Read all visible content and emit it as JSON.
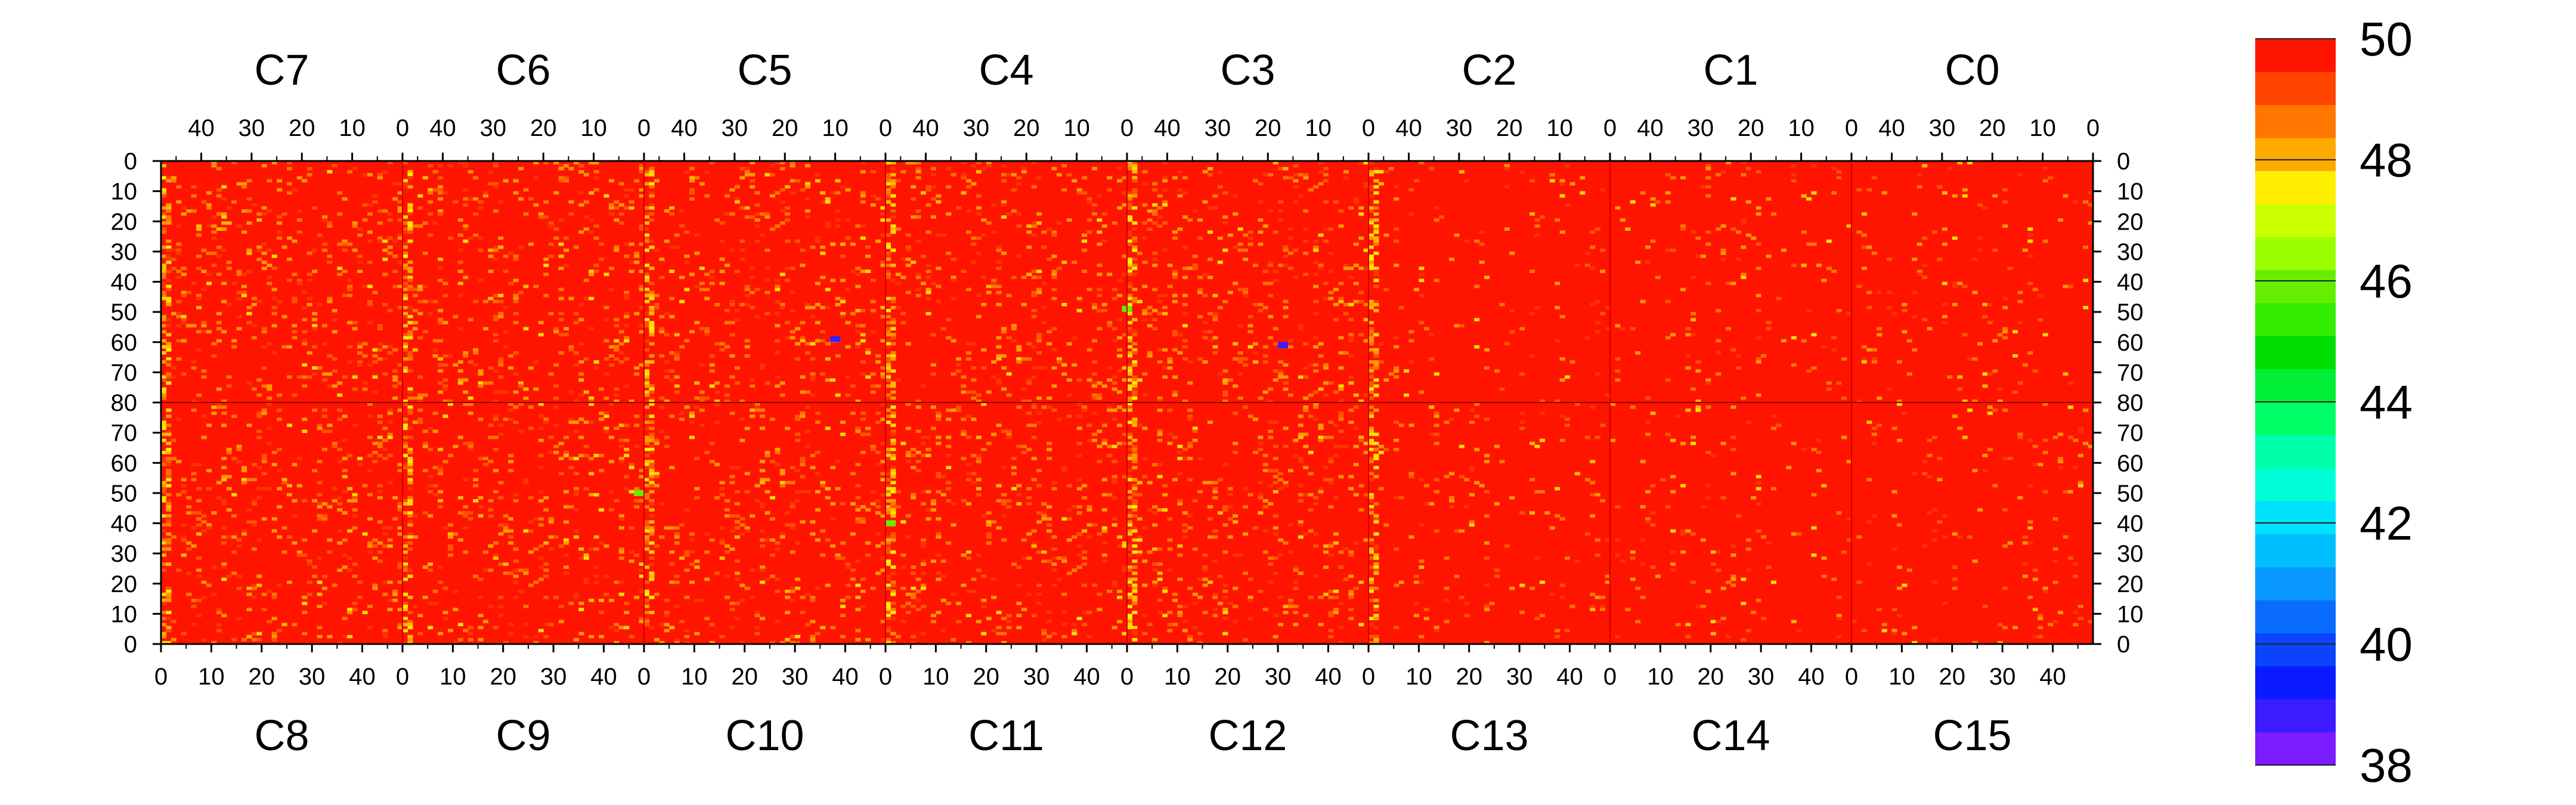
{
  "chart_data": {
    "type": "heatmap",
    "title": "",
    "xlabel": "",
    "ylabel": "",
    "top_chambers": [
      "C7",
      "C6",
      "C5",
      "C4",
      "C3",
      "C2",
      "C1",
      "C0"
    ],
    "bottom_chambers": [
      "C8",
      "C9",
      "C10",
      "C11",
      "C12",
      "C13",
      "C14",
      "C15"
    ],
    "top_x_ticks": [
      "40",
      "30",
      "20",
      "10",
      "0"
    ],
    "bottom_x_ticks": [
      "0",
      "10",
      "20",
      "30",
      "40"
    ],
    "y_ticks": [
      "0",
      "10",
      "20",
      "30",
      "40",
      "50",
      "60",
      "70",
      "80",
      "70",
      "60",
      "50",
      "40",
      "30",
      "20",
      "10",
      "0"
    ],
    "channels_per_chamber": 48,
    "rows_per_half": 80,
    "colorscale": {
      "min": 38,
      "max": 50,
      "tick_labels": [
        "50",
        "48",
        "46",
        "44",
        "42",
        "40",
        "38"
      ],
      "bands": [
        "#7a1cff",
        "#3a1cff",
        "#0a1cff",
        "#0a44ff",
        "#0a6cff",
        "#0a9aff",
        "#00bfff",
        "#00e0ff",
        "#00ffd6",
        "#00ffaa",
        "#00ff66",
        "#00ee33",
        "#00dd00",
        "#33ee00",
        "#66ee00",
        "#99ff00",
        "#ccff00",
        "#ffee00",
        "#ffaa00",
        "#ff7700",
        "#ff4400",
        "#ff1400"
      ]
    },
    "dominant_value": 50,
    "dominant_color": "#ff1400",
    "warm_stripe_columns": [
      0,
      48,
      96,
      144,
      192,
      240
    ],
    "hotspots": [
      {
        "chamber": "C4",
        "channel": 0,
        "row": 48,
        "value": 46
      },
      {
        "chamber": "C11",
        "channel": 0,
        "row": 40,
        "value": 46
      },
      {
        "chamber": "C9",
        "channel": 46,
        "row": 50,
        "value": 46
      },
      {
        "chamber": "C5",
        "channel": 10,
        "row": 58,
        "value": 39
      },
      {
        "chamber": "C3",
        "channel": 17,
        "row": 60,
        "value": 39
      }
    ]
  }
}
